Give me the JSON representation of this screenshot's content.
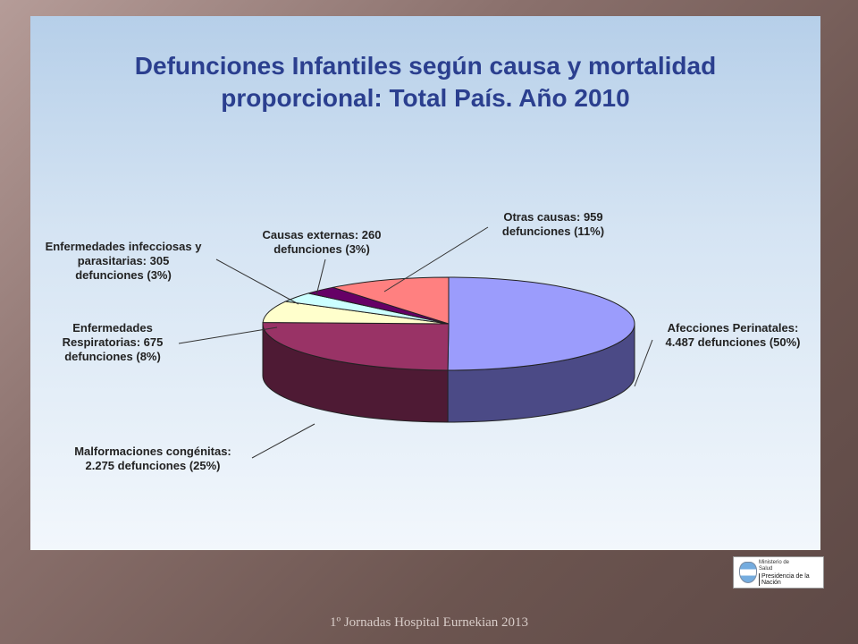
{
  "slide": {
    "title_line1": "Defunciones Infantiles según causa y mortalidad",
    "title_line2": "proporcional: Total País. Año 2010",
    "footer": "1º Jornadas Hospital Eurnekian 2013"
  },
  "logo": {
    "ministry_line1": "Ministerio de",
    "ministry_line2": "Salud",
    "presidency": "Presidencia de la Nación"
  },
  "chart_data": {
    "type": "pie",
    "title": "Defunciones Infantiles según causa y mortalidad proporcional: Total País. Año 2010",
    "slices": [
      {
        "key": "perinatales",
        "name": "Afecciones Perinatales",
        "value": 4487,
        "percent": 50,
        "label_line1": "Afecciones Perinatales:",
        "label_line2": "4.487 defunciones (50%)",
        "color": "#9b9cfc",
        "side_color": "#4b4a86"
      },
      {
        "key": "malformaciones",
        "name": "Malformaciones congénitas",
        "value": 2275,
        "percent": 25,
        "label_line1": "Malformaciones congénitas:",
        "label_line2": "2.275 defunciones (25%)",
        "color": "#993366",
        "side_color": "#4e1a34"
      },
      {
        "key": "respiratorias",
        "name": "Enfermedades Respiratorias",
        "value": 675,
        "percent": 8,
        "label_line1": "Enfermedades",
        "label_line2": "Respiratorias: 675",
        "label_line3": "defunciones (8%)",
        "color": "#ffffcc",
        "side_color": "#8c8c70"
      },
      {
        "key": "infecciosas",
        "name": "Enfermedades infecciosas y parasitarias",
        "value": 305,
        "percent": 3,
        "label_line1": "Enfermedades infecciosas y",
        "label_line2": "parasitarias: 305",
        "label_line3": "defunciones (3%)",
        "color": "#ccffff",
        "side_color": "#708c8c"
      },
      {
        "key": "externas",
        "name": "Causas externas",
        "value": 260,
        "percent": 3,
        "label_line1": "Causas externas: 260",
        "label_line2": "defunciones (3%)",
        "color": "#660066",
        "side_color": "#330033"
      },
      {
        "key": "otras",
        "name": "Otras causas",
        "value": 959,
        "percent": 11,
        "label_line1": "Otras causas: 959",
        "label_line2": "defunciones (11%)",
        "color": "#ff8080",
        "side_color": "#8c4646"
      }
    ]
  }
}
